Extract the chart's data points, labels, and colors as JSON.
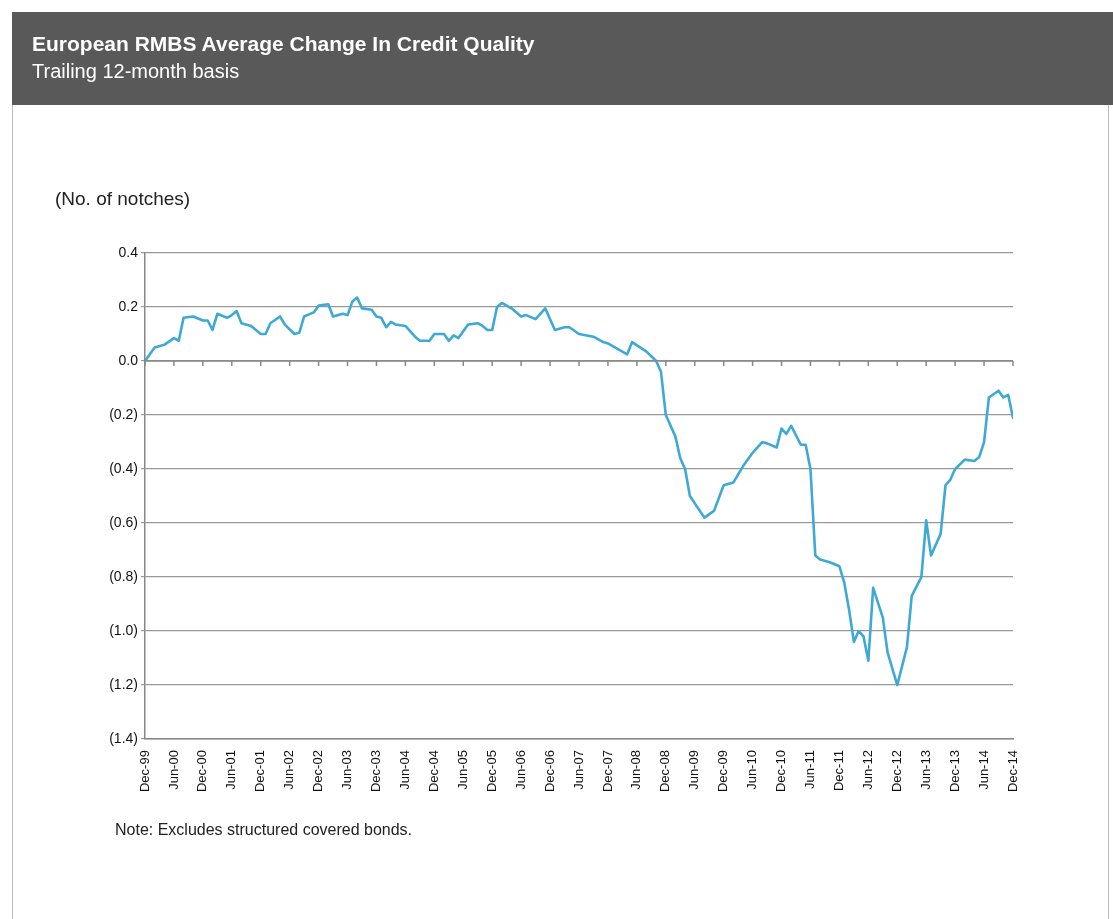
{
  "chart_data": {
    "type": "line",
    "title": "European RMBS Average Change In Credit Quality",
    "subtitle": "Trailing  12-month  basis",
    "ylabel": "(No. of notches)",
    "annotations": [
      "Note: Excludes structured covered bonds."
    ],
    "x": [
      "1999-12",
      "2000-02",
      "2000-04",
      "2000-06",
      "2000-07",
      "2000-08",
      "2000-10",
      "2000-12",
      "2001-01",
      "2001-02",
      "2001-03",
      "2001-05",
      "2001-06",
      "2001-07",
      "2001-08",
      "2001-10",
      "2001-12",
      "2002-01",
      "2002-02",
      "2002-04",
      "2002-05",
      "2002-07",
      "2002-08",
      "2002-09",
      "2002-11",
      "2002-12",
      "2003-02",
      "2003-03",
      "2003-05",
      "2003-06",
      "2003-07",
      "2003-08",
      "2003-09",
      "2003-11",
      "2003-12",
      "2004-01",
      "2004-02",
      "2004-03",
      "2004-04",
      "2004-06",
      "2004-08",
      "2004-09",
      "2004-11",
      "2004-12",
      "2005-02",
      "2005-03",
      "2005-04",
      "2005-05",
      "2005-07",
      "2005-09",
      "2005-10",
      "2005-11",
      "2005-12",
      "2006-01",
      "2006-02",
      "2006-04",
      "2006-06",
      "2006-07",
      "2006-09",
      "2006-11",
      "2007-01",
      "2007-03",
      "2007-04",
      "2007-06",
      "2007-09",
      "2007-11",
      "2007-12",
      "2008-04",
      "2008-05",
      "2008-08",
      "2008-10",
      "2008-11",
      "2008-12",
      "2009-02",
      "2009-03",
      "2009-04",
      "2009-05",
      "2009-08",
      "2009-10",
      "2009-12",
      "2010-02",
      "2010-04",
      "2010-06",
      "2010-08",
      "2010-09",
      "2010-11",
      "2010-12",
      "2011-01",
      "2011-02",
      "2011-04",
      "2011-05",
      "2011-06",
      "2011-07",
      "2011-08",
      "2011-10",
      "2011-12",
      "2012-01",
      "2012-02",
      "2012-03",
      "2012-04",
      "2012-05",
      "2012-06",
      "2012-07",
      "2012-09",
      "2012-10",
      "2012-12",
      "2013-02",
      "2013-03",
      "2013-05",
      "2013-06",
      "2013-07",
      "2013-09",
      "2013-10",
      "2013-11",
      "2013-12",
      "2014-02",
      "2014-04",
      "2014-05",
      "2014-06",
      "2014-07",
      "2014-09",
      "2014-10",
      "2014-11",
      "2014-12"
    ],
    "series": [
      {
        "color": "#3fa9d6",
        "values": [
          0.0,
          0.05,
          0.06,
          0.085,
          0.075,
          0.16,
          0.165,
          0.15,
          0.15,
          0.115,
          0.175,
          0.16,
          0.17,
          0.185,
          0.14,
          0.13,
          0.1,
          0.1,
          0.14,
          0.165,
          0.135,
          0.1,
          0.105,
          0.165,
          0.18,
          0.205,
          0.21,
          0.165,
          0.175,
          0.17,
          0.22,
          0.235,
          0.195,
          0.19,
          0.165,
          0.16,
          0.125,
          0.145,
          0.135,
          0.13,
          0.09,
          0.075,
          0.075,
          0.1,
          0.1,
          0.075,
          0.095,
          0.085,
          0.135,
          0.14,
          0.13,
          0.115,
          0.115,
          0.2,
          0.215,
          0.195,
          0.165,
          0.17,
          0.155,
          0.195,
          0.115,
          0.125,
          0.125,
          0.1,
          0.09,
          0.07,
          0.065,
          0.025,
          0.07,
          0.035,
          0.0,
          -0.04,
          -0.2,
          -0.28,
          -0.36,
          -0.4,
          -0.5,
          -0.58,
          -0.555,
          -0.46,
          -0.45,
          -0.39,
          -0.34,
          -0.3,
          -0.305,
          -0.32,
          -0.25,
          -0.27,
          -0.24,
          -0.31,
          -0.31,
          -0.4,
          -0.72,
          -0.735,
          -0.745,
          -0.76,
          -0.82,
          -0.92,
          -1.04,
          -1.0,
          -1.02,
          -1.11,
          -0.84,
          -0.95,
          -1.08,
          -1.2,
          -1.06,
          -0.87,
          -0.8,
          -0.59,
          -0.72,
          -0.64,
          -0.46,
          -0.44,
          -0.4,
          -0.365,
          -0.37,
          -0.355,
          -0.3,
          -0.135,
          -0.11,
          -0.135,
          -0.125,
          -0.21
        ]
      }
    ],
    "xlim": [
      "1999-12",
      "2014-12"
    ],
    "xticks": [
      {
        "value": "1999-12",
        "label": "Dec-99"
      },
      {
        "value": "2000-06",
        "label": "Jun-00"
      },
      {
        "value": "2000-12",
        "label": "Dec-00"
      },
      {
        "value": "2001-06",
        "label": "Jun-01"
      },
      {
        "value": "2001-12",
        "label": "Dec-01"
      },
      {
        "value": "2002-06",
        "label": "Jun-02"
      },
      {
        "value": "2002-12",
        "label": "Dec-02"
      },
      {
        "value": "2003-06",
        "label": "Jun-03"
      },
      {
        "value": "2003-12",
        "label": "Dec-03"
      },
      {
        "value": "2004-06",
        "label": "Jun-04"
      },
      {
        "value": "2004-12",
        "label": "Dec-04"
      },
      {
        "value": "2005-06",
        "label": "Jun-05"
      },
      {
        "value": "2005-12",
        "label": "Dec-05"
      },
      {
        "value": "2006-06",
        "label": "Jun-06"
      },
      {
        "value": "2006-12",
        "label": "Dec-06"
      },
      {
        "value": "2007-06",
        "label": "Jun-07"
      },
      {
        "value": "2007-12",
        "label": "Dec-07"
      },
      {
        "value": "2008-06",
        "label": "Jun-08"
      },
      {
        "value": "2008-12",
        "label": "Dec-08"
      },
      {
        "value": "2009-06",
        "label": "Jun-09"
      },
      {
        "value": "2009-12",
        "label": "Dec-09"
      },
      {
        "value": "2010-06",
        "label": "Jun-10"
      },
      {
        "value": "2010-12",
        "label": "Dec-10"
      },
      {
        "value": "2011-06",
        "label": "Jun-11"
      },
      {
        "value": "2011-12",
        "label": "Dec-11"
      },
      {
        "value": "2012-06",
        "label": "Jun-12"
      },
      {
        "value": "2012-12",
        "label": "Dec-12"
      },
      {
        "value": "2013-06",
        "label": "Jun-13"
      },
      {
        "value": "2013-12",
        "label": "Dec-13"
      },
      {
        "value": "2014-06",
        "label": "Jun-14"
      },
      {
        "value": "2014-12",
        "label": "Dec-14"
      }
    ],
    "ylim": [
      -1.4,
      0.4
    ],
    "yticks": [
      0.4,
      0.2,
      {
        "value": 0,
        "label": "0.0"
      },
      {
        "value": -0.2,
        "label": "(0.2)"
      },
      {
        "value": -0.4,
        "label": "(0.4)"
      },
      {
        "value": -0.6,
        "label": "(0.6)"
      },
      {
        "value": -0.8,
        "label": "(0.8)"
      },
      {
        "value": -1.0,
        "label": "(1.0)"
      },
      {
        "value": -1.2,
        "label": "(1.2)"
      },
      {
        "value": -1.4,
        "label": "(1.4)"
      }
    ],
    "grid": "y",
    "legend": false,
    "marker": "none",
    "line_style": "solid"
  }
}
